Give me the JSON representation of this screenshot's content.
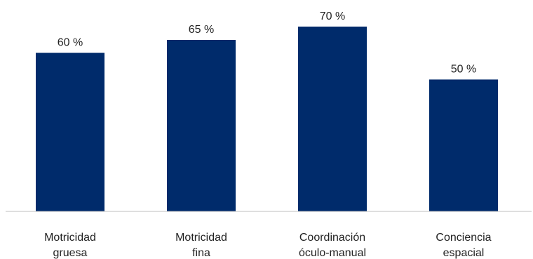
{
  "chart_data": {
    "type": "bar",
    "categories": [
      [
        "Motricidad",
        "gruesa"
      ],
      [
        "Motricidad",
        "fina"
      ],
      [
        "Coordinación",
        "óculo-manual"
      ],
      [
        "Conciencia",
        "espacial"
      ]
    ],
    "values": [
      60,
      65,
      70,
      50
    ],
    "value_labels": [
      "60 %",
      "65 %",
      "70 %",
      "50 %"
    ],
    "ylim": [
      0,
      70
    ],
    "grid": false,
    "legend": "none",
    "bar_color": "#002B6B",
    "axis_color": "#BFBFBF"
  }
}
